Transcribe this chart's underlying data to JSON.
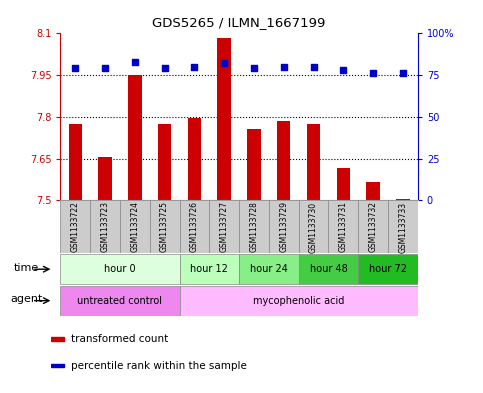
{
  "title": "GDS5265 / ILMN_1667199",
  "samples": [
    "GSM1133722",
    "GSM1133723",
    "GSM1133724",
    "GSM1133725",
    "GSM1133726",
    "GSM1133727",
    "GSM1133728",
    "GSM1133729",
    "GSM1133730",
    "GSM1133731",
    "GSM1133732",
    "GSM1133733"
  ],
  "transformed_counts": [
    7.775,
    7.655,
    7.95,
    7.775,
    7.795,
    8.085,
    7.755,
    7.785,
    7.775,
    7.615,
    7.565,
    7.505
  ],
  "percentile_ranks": [
    79,
    79,
    83,
    79,
    80,
    82,
    79,
    80,
    80,
    78,
    76,
    76
  ],
  "ylim_left": [
    7.5,
    8.1
  ],
  "ylim_right": [
    0,
    100
  ],
  "yticks_left": [
    7.5,
    7.65,
    7.8,
    7.95,
    8.1
  ],
  "yticks_right": [
    0,
    25,
    50,
    75,
    100
  ],
  "ytick_labels_left": [
    "7.5",
    "7.65",
    "7.8",
    "7.95",
    "8.1"
  ],
  "ytick_labels_right": [
    "0",
    "25",
    "50",
    "75",
    "100%"
  ],
  "hlines": [
    7.65,
    7.8,
    7.95
  ],
  "bar_color": "#CC0000",
  "dot_color": "#0000CC",
  "sample_box_color": "#cccccc",
  "time_groups": [
    {
      "label": "hour 0",
      "start": 0,
      "end": 3,
      "color": "#ddffdd"
    },
    {
      "label": "hour 12",
      "start": 4,
      "end": 5,
      "color": "#bbffbb"
    },
    {
      "label": "hour 24",
      "start": 6,
      "end": 7,
      "color": "#88ee88"
    },
    {
      "label": "hour 48",
      "start": 8,
      "end": 9,
      "color": "#44cc44"
    },
    {
      "label": "hour 72",
      "start": 10,
      "end": 11,
      "color": "#22bb22"
    }
  ],
  "agent_groups": [
    {
      "label": "untreated control",
      "start": 0,
      "end": 3,
      "color": "#ee88ee"
    },
    {
      "label": "mycophenolic acid",
      "start": 4,
      "end": 11,
      "color": "#ffbbff"
    }
  ],
  "legend_items": [
    {
      "label": "transformed count",
      "color": "#CC0000"
    },
    {
      "label": "percentile rank within the sample",
      "color": "#0000CC"
    }
  ],
  "time_row_label": "time",
  "agent_row_label": "agent",
  "bg_color": "#ffffff",
  "tick_color_left": "#CC0000",
  "tick_color_right": "#0000CC",
  "title_fontsize": 9.5,
  "bar_width": 0.45,
  "dot_size": 18
}
